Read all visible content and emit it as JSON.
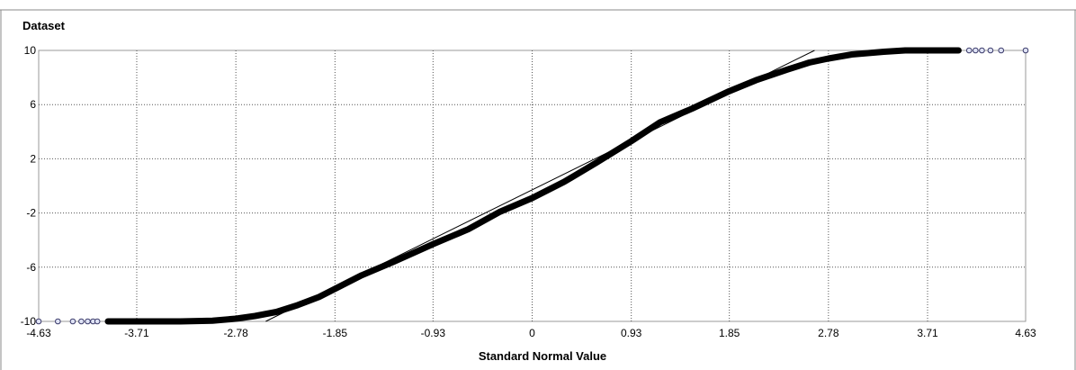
{
  "chart_data": {
    "type": "scatter",
    "title": "",
    "ylabel": "Dataset",
    "xlabel": "Standard Normal Value",
    "xlim": [
      -4.63,
      4.63
    ],
    "ylim": [
      -10,
      10
    ],
    "x_ticks": [
      "-4.63",
      "-3.71",
      "-2.78",
      "-1.85",
      "-0.93",
      "0",
      "0.93",
      "1.85",
      "2.78",
      "3.71",
      "4.63"
    ],
    "y_ticks": [
      "10",
      "6",
      "2",
      "-2",
      "-6",
      "-10"
    ],
    "grid": true,
    "series": [
      {
        "marker": "open-circle",
        "color": "#1a1a1a",
        "points": [
          [
            -4.63,
            -10
          ],
          [
            -4.45,
            -10
          ],
          [
            -4.3,
            -10
          ],
          [
            -4.2,
            -10
          ],
          [
            -4.12,
            -10
          ],
          [
            -4.05,
            -10
          ],
          [
            -3.98,
            -10
          ],
          [
            -3.9,
            -10
          ],
          [
            -3.8,
            -10
          ],
          [
            -3.6,
            -10
          ],
          [
            -3.3,
            -10
          ],
          [
            -3.0,
            -9.95
          ],
          [
            -2.78,
            -9.8
          ],
          [
            -2.6,
            -9.6
          ],
          [
            -2.4,
            -9.3
          ],
          [
            -2.2,
            -8.8
          ],
          [
            -2.0,
            -8.2
          ],
          [
            -1.85,
            -7.6
          ],
          [
            -1.6,
            -6.6
          ],
          [
            -1.3,
            -5.6
          ],
          [
            -0.93,
            -4.3
          ],
          [
            -0.6,
            -3.2
          ],
          [
            -0.3,
            -1.9
          ],
          [
            0,
            -0.9
          ],
          [
            0.3,
            0.3
          ],
          [
            0.6,
            1.7
          ],
          [
            0.93,
            3.3
          ],
          [
            1.2,
            4.7
          ],
          [
            1.5,
            5.7
          ],
          [
            1.85,
            7.0
          ],
          [
            2.1,
            7.8
          ],
          [
            2.4,
            8.6
          ],
          [
            2.6,
            9.1
          ],
          [
            2.78,
            9.4
          ],
          [
            3.0,
            9.7
          ],
          [
            3.3,
            9.9
          ],
          [
            3.5,
            10
          ],
          [
            3.71,
            10
          ],
          [
            3.9,
            10
          ],
          [
            4.0,
            10
          ],
          [
            4.1,
            10
          ],
          [
            4.16,
            10
          ],
          [
            4.22,
            10
          ],
          [
            4.3,
            10
          ],
          [
            4.4,
            10
          ],
          [
            4.63,
            10
          ]
        ]
      }
    ],
    "reference_line": {
      "from": [
        -2.5,
        -10
      ],
      "to": [
        2.65,
        10
      ]
    },
    "sparse_points": [
      [
        -4.63,
        -10
      ],
      [
        -4.45,
        -10
      ],
      [
        -4.31,
        -10
      ],
      [
        -4.23,
        -10
      ],
      [
        -4.17,
        -10
      ],
      [
        -4.12,
        -10
      ],
      [
        -4.08,
        -10
      ],
      [
        4.1,
        10
      ],
      [
        4.16,
        10
      ],
      [
        4.22,
        10
      ],
      [
        4.3,
        10
      ],
      [
        4.4,
        10
      ],
      [
        4.63,
        10
      ]
    ]
  }
}
